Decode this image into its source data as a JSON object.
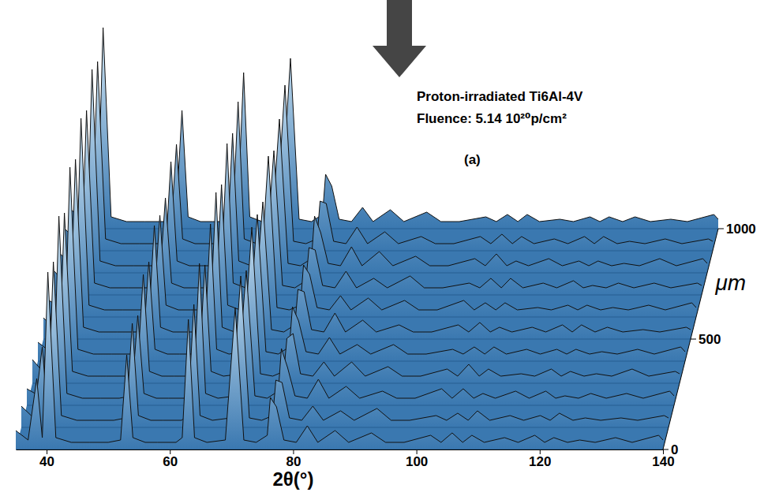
{
  "chart_data": {
    "type": "waterfall",
    "annotations": [
      "Proton-irradiated Ti6Al-4V",
      "Fluence: 5.14 10²⁰p/cm²",
      "(a)"
    ],
    "x_label": "2θ(°)",
    "y_label": "μm",
    "color": "#3a78b0",
    "xlim": [
      35,
      140
    ],
    "xticks": [
      40,
      60,
      80,
      100,
      120,
      140
    ],
    "ylim": [
      0,
      1000
    ],
    "yticks": [
      0,
      500,
      1000
    ],
    "zlim": [
      0,
      100
    ],
    "x": [
      35,
      37,
      38.4,
      39.3,
      40.2,
      41.5,
      44,
      47,
      50,
      52,
      53,
      54,
      56,
      58,
      61,
      62,
      63,
      64,
      66,
      69,
      70.6,
      72,
      74,
      75.8,
      76.3,
      77.3,
      78.5,
      80.5,
      82.3,
      84,
      86.8,
      89,
      92.7,
      95,
      98,
      102.3,
      104,
      105.8,
      107.5,
      109,
      111,
      114.3,
      116.5,
      119.2,
      120.8,
      122.3,
      124.5,
      126.5,
      129,
      132.3,
      135,
      139.3,
      140
    ],
    "series": [
      {
        "depth": 0,
        "values": [
          8,
          4,
          30,
          5,
          75,
          5,
          3,
          3,
          3,
          4,
          40,
          5,
          3,
          3,
          3,
          5,
          55,
          5,
          3,
          4,
          60,
          4,
          3,
          6,
          22,
          18,
          4,
          3,
          10,
          3,
          8,
          3,
          7,
          3,
          3,
          6,
          3,
          7,
          3,
          6,
          3,
          5,
          3,
          6,
          3,
          5,
          3,
          4,
          3,
          5,
          3,
          6,
          4
        ]
      },
      {
        "depth": 100,
        "values": [
          9,
          4,
          34,
          5,
          70,
          5,
          3,
          3,
          3,
          4,
          44,
          5,
          3,
          3,
          3,
          5,
          52,
          5,
          3,
          4,
          64,
          4,
          3,
          5,
          20,
          19,
          4,
          3,
          9,
          3,
          7,
          3,
          8,
          3,
          3,
          5,
          3,
          6,
          3,
          7,
          3,
          5,
          3,
          5,
          3,
          6,
          3,
          4,
          3,
          4,
          3,
          5,
          4
        ]
      },
      {
        "depth": 200,
        "values": [
          7,
          4,
          28,
          5,
          80,
          5,
          3,
          3,
          3,
          4,
          38,
          5,
          3,
          3,
          3,
          5,
          60,
          5,
          3,
          4,
          57,
          4,
          3,
          6,
          24,
          16,
          4,
          3,
          11,
          3,
          8,
          3,
          6,
          3,
          3,
          7,
          3,
          7,
          3,
          5,
          3,
          6,
          3,
          6,
          3,
          4,
          3,
          5,
          3,
          5,
          3,
          6,
          4
        ]
      },
      {
        "depth": 300,
        "values": [
          10,
          4,
          36,
          5,
          72,
          5,
          3,
          3,
          3,
          4,
          46,
          5,
          3,
          3,
          3,
          5,
          50,
          5,
          3,
          4,
          66,
          4,
          3,
          5,
          19,
          21,
          4,
          3,
          9,
          3,
          9,
          3,
          7,
          3,
          3,
          6,
          3,
          8,
          3,
          6,
          3,
          4,
          3,
          6,
          3,
          5,
          3,
          4,
          3,
          6,
          3,
          5,
          4
        ]
      },
      {
        "depth": 400,
        "values": [
          8,
          4,
          31,
          5,
          82,
          5,
          3,
          3,
          3,
          4,
          42,
          5,
          3,
          3,
          3,
          5,
          58,
          5,
          3,
          4,
          62,
          4,
          3,
          6,
          23,
          17,
          4,
          3,
          10,
          3,
          7,
          3,
          7,
          3,
          3,
          5,
          3,
          6,
          3,
          6,
          3,
          5,
          3,
          5,
          3,
          5,
          3,
          4,
          3,
          5,
          3,
          6,
          4
        ]
      },
      {
        "depth": 500,
        "values": [
          9,
          4,
          33,
          5,
          76,
          5,
          3,
          3,
          3,
          4,
          48,
          5,
          3,
          3,
          3,
          5,
          62,
          5,
          3,
          4,
          58,
          4,
          3,
          6,
          21,
          20,
          4,
          3,
          11,
          3,
          8,
          3,
          6,
          3,
          3,
          6,
          3,
          7,
          3,
          5,
          3,
          5,
          3,
          6,
          3,
          6,
          3,
          5,
          3,
          4,
          3,
          5,
          4
        ]
      },
      {
        "depth": 600,
        "values": [
          7,
          4,
          29,
          5,
          84,
          5,
          3,
          3,
          3,
          4,
          43,
          5,
          3,
          3,
          3,
          5,
          56,
          5,
          3,
          4,
          68,
          4,
          3,
          5,
          22,
          18,
          4,
          3,
          9,
          3,
          8,
          3,
          7,
          3,
          3,
          7,
          3,
          6,
          3,
          6,
          3,
          4,
          3,
          5,
          3,
          5,
          3,
          4,
          3,
          5,
          3,
          6,
          4
        ]
      },
      {
        "depth": 700,
        "values": [
          10,
          4,
          35,
          5,
          78,
          5,
          3,
          3,
          3,
          4,
          41,
          5,
          3,
          3,
          3,
          5,
          64,
          5,
          3,
          4,
          61,
          4,
          3,
          6,
          20,
          19,
          4,
          3,
          10,
          3,
          7,
          3,
          8,
          3,
          3,
          5,
          3,
          7,
          3,
          7,
          3,
          5,
          3,
          6,
          3,
          4,
          3,
          5,
          3,
          5,
          3,
          5,
          4
        ]
      },
      {
        "depth": 800,
        "values": [
          8,
          4,
          32,
          5,
          86,
          5,
          3,
          3,
          3,
          4,
          47,
          5,
          3,
          3,
          3,
          5,
          59,
          5,
          3,
          4,
          65,
          4,
          3,
          6,
          24,
          17,
          4,
          3,
          11,
          3,
          9,
          3,
          7,
          3,
          3,
          6,
          3,
          8,
          3,
          5,
          3,
          6,
          3,
          5,
          3,
          5,
          3,
          4,
          3,
          6,
          3,
          6,
          4
        ]
      },
      {
        "depth": 900,
        "values": [
          9,
          4,
          37,
          5,
          80,
          5,
          3,
          3,
          3,
          4,
          45,
          5,
          3,
          3,
          3,
          5,
          63,
          5,
          3,
          4,
          70,
          4,
          3,
          5,
          21,
          20,
          4,
          3,
          10,
          3,
          8,
          3,
          6,
          3,
          3,
          6,
          3,
          7,
          3,
          6,
          3,
          5,
          3,
          6,
          3,
          6,
          3,
          4,
          3,
          5,
          3,
          5,
          4
        ]
      },
      {
        "depth": 1000,
        "values": [
          8,
          4,
          34,
          5,
          85,
          5,
          3,
          3,
          3,
          4,
          50,
          5,
          3,
          3,
          3,
          5,
          66,
          5,
          3,
          4,
          72,
          4,
          3,
          6,
          23,
          18,
          4,
          3,
          9,
          3,
          8,
          3,
          7,
          3,
          3,
          5,
          3,
          6,
          3,
          6,
          3,
          4,
          3,
          5,
          3,
          5,
          3,
          5,
          3,
          4,
          3,
          6,
          4
        ]
      }
    ]
  }
}
